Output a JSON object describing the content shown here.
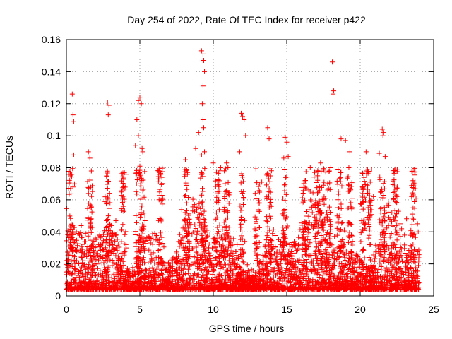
{
  "chart_data": {
    "type": "scatter",
    "title": "Day 254 of 2022, Rate Of TEC Index for receiver p422",
    "xlabel": "GPS time / hours",
    "ylabel": "ROTI / TECUs",
    "xlim": [
      0,
      25
    ],
    "ylim": [
      0,
      0.16
    ],
    "xticks": [
      "0",
      "5",
      "10",
      "15",
      "20",
      "25"
    ],
    "yticks": [
      "0",
      "0.02",
      "0.04",
      "0.06",
      "0.08",
      "0.1",
      "0.12",
      "0.14",
      "0.16"
    ],
    "grid": true,
    "marker": "plus",
    "color": "#ff0000",
    "series": [
      {
        "x": [
          0.4,
          0.45,
          0.5,
          0.5,
          0.55,
          0.45,
          1.5,
          1.6,
          1.7,
          2.8,
          2.9,
          2.85,
          4.7,
          4.8,
          4.9,
          5.0,
          5.1,
          5.15,
          5.2,
          4.9,
          5.0,
          6.3,
          6.5,
          8.1,
          8.8,
          9.0,
          9.2,
          9.3,
          9.35,
          9.4,
          9.3,
          9.25,
          9.3,
          9.35,
          9.2,
          9.4,
          10.0,
          10.5,
          10.9,
          11.0,
          11.9,
          12.0,
          12.1,
          12.2,
          11.8,
          13.3,
          13.7,
          13.8,
          14.8,
          14.9,
          15.0,
          15.1,
          16.6,
          17.1,
          17.3,
          17.5,
          17.9,
          18.1,
          18.2,
          18.15,
          18.0,
          18.7,
          19.0,
          19.3,
          20.4,
          20.5,
          20.9,
          21.3,
          21.5,
          21.6,
          21.55,
          21.7,
          22.5,
          23.6,
          23.8,
          23.9,
          23.95
        ],
        "y": [
          0.126,
          0.113,
          0.109,
          0.088,
          0.07,
          0.068,
          0.09,
          0.086,
          0.078,
          0.121,
          0.119,
          0.113,
          0.094,
          0.11,
          0.122,
          0.124,
          0.12,
          0.092,
          0.09,
          0.1,
          0.081,
          0.078,
          0.074,
          0.085,
          0.092,
          0.102,
          0.153,
          0.151,
          0.147,
          0.14,
          0.131,
          0.12,
          0.11,
          0.105,
          0.088,
          0.09,
          0.083,
          0.08,
          0.083,
          0.08,
          0.114,
          0.112,
          0.11,
          0.1,
          0.09,
          0.071,
          0.105,
          0.098,
          0.086,
          0.099,
          0.096,
          0.087,
          0.08,
          0.075,
          0.083,
          0.079,
          0.078,
          0.146,
          0.128,
          0.126,
          0.08,
          0.098,
          0.097,
          0.09,
          0.09,
          0.079,
          0.062,
          0.089,
          0.104,
          0.102,
          0.1,
          0.087,
          0.062,
          0.055,
          0.061,
          0.045,
          0.04
        ]
      }
    ]
  }
}
